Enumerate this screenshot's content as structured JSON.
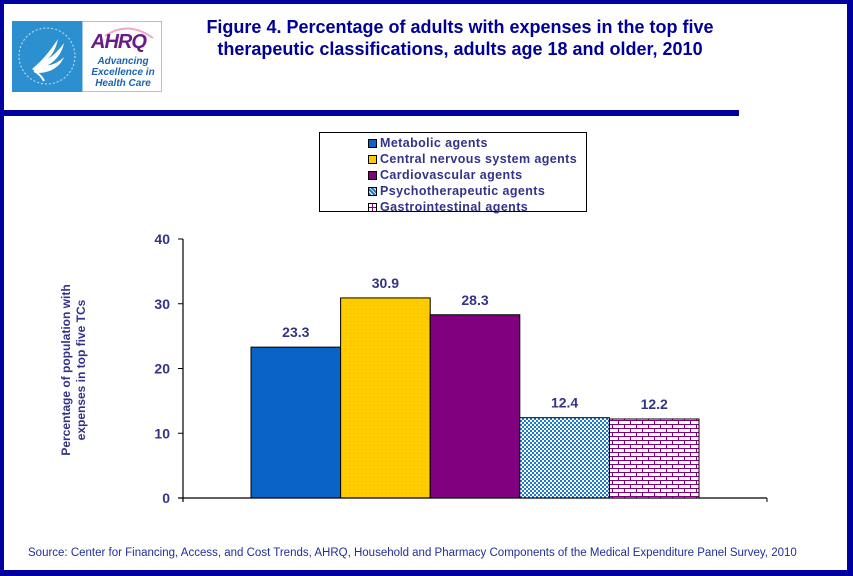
{
  "header": {
    "title_line1": "Figure 4. Percentage of adults with expenses in the top five",
    "title_line2": "therapeutic classifications, adults age 18 and older, 2010",
    "logo": {
      "hhs_icon": "hhs-eagle-seal-icon",
      "ahrq_word": "AHRQ",
      "tagline_line1": "Advancing",
      "tagline_line2": "Excellence in",
      "tagline_line3": "Health Care"
    }
  },
  "colors": {
    "frame": "#0000a0",
    "title": "#000099",
    "label": "#33338a"
  },
  "footer": {
    "source": "Source: Center for Financing, Access, and Cost Trends, AHRQ, Household and Pharmacy Components of the Medical Expenditure Panel Survey, 2010"
  },
  "chart_data": {
    "type": "bar",
    "title": "Figure 4. Percentage of adults with expenses in the top five therapeutic classifications, adults age 18 and older, 2010",
    "xlabel": "",
    "ylabel_line1": "Percentage of population with",
    "ylabel_line2": "expenses in top five TCs",
    "ylim": [
      0,
      40
    ],
    "yticks": [
      0,
      10,
      20,
      30,
      40
    ],
    "grid": false,
    "legend_position": "top-center",
    "series": [
      {
        "name": "Metabolic agents",
        "value": 23.3,
        "color": "#0a64c8",
        "pattern": "solid"
      },
      {
        "name": "Central nervous system agents",
        "value": 30.9,
        "color": "#ffcc00",
        "pattern": "solid"
      },
      {
        "name": "Cardiovascular agents",
        "value": 28.3,
        "color": "#800080",
        "pattern": "solid"
      },
      {
        "name": "Psychotherapeutic agents",
        "value": 12.4,
        "color": "#1a7ad0",
        "pattern": "dots"
      },
      {
        "name": "Gastrointestinal agents",
        "value": 12.2,
        "color": "#800080",
        "pattern": "brick"
      }
    ],
    "data_labels": [
      "23.3",
      "30.9",
      "28.3",
      "12.4",
      "12.2"
    ]
  }
}
